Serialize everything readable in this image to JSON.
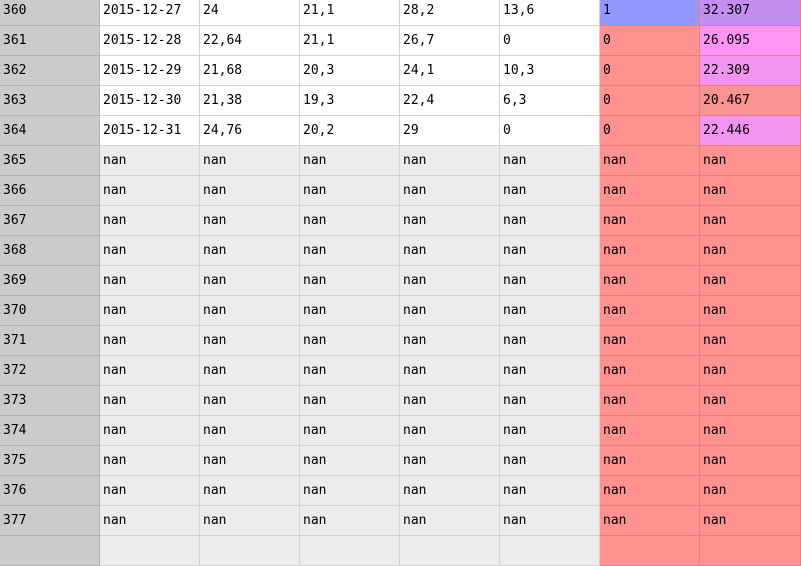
{
  "colors": {
    "index_bg": "#cbcbcb",
    "cell_white": "#ffffff",
    "cell_grey": "#ececec",
    "cell_red": "#ff9191",
    "cell_blue": "#9199ff",
    "cell_purple": "#c38ef2",
    "cell_pink": "#ff93f6",
    "cell_magenta_light": "#f494f2"
  },
  "rows": [
    {
      "index": "360",
      "cells": [
        "2015-12-27",
        "24",
        "21,1",
        "28,2",
        "13,6",
        "1",
        "32.307"
      ],
      "colors": [
        "",
        "",
        "",
        "",
        "",
        "#9199ff",
        "#c38ef2"
      ]
    },
    {
      "index": "361",
      "cells": [
        "2015-12-28",
        "22,64",
        "21,1",
        "26,7",
        "0",
        "0",
        "26.095"
      ],
      "colors": [
        "",
        "",
        "",
        "",
        "",
        "#ff9191",
        "#ff93f6"
      ]
    },
    {
      "index": "362",
      "cells": [
        "2015-12-29",
        "21,68",
        "20,3",
        "24,1",
        "10,3",
        "0",
        "22.309"
      ],
      "colors": [
        "",
        "",
        "",
        "",
        "",
        "#ff9191",
        "#f494f2"
      ]
    },
    {
      "index": "363",
      "cells": [
        "2015-12-30",
        "21,38",
        "19,3",
        "22,4",
        "6,3",
        "0",
        "20.467"
      ],
      "colors": [
        "",
        "",
        "",
        "",
        "",
        "#ff9191",
        "#f79391"
      ]
    },
    {
      "index": "364",
      "cells": [
        "2015-12-31",
        "24,76",
        "20,2",
        "29",
        "0",
        "0",
        "22.446"
      ],
      "colors": [
        "",
        "",
        "",
        "",
        "",
        "#ff9191",
        "#f494f2"
      ]
    },
    {
      "index": "365",
      "cells": [
        "nan",
        "nan",
        "nan",
        "nan",
        "nan",
        "nan",
        "nan"
      ]
    },
    {
      "index": "366",
      "cells": [
        "nan",
        "nan",
        "nan",
        "nan",
        "nan",
        "nan",
        "nan"
      ]
    },
    {
      "index": "367",
      "cells": [
        "nan",
        "nan",
        "nan",
        "nan",
        "nan",
        "nan",
        "nan"
      ]
    },
    {
      "index": "368",
      "cells": [
        "nan",
        "nan",
        "nan",
        "nan",
        "nan",
        "nan",
        "nan"
      ]
    },
    {
      "index": "369",
      "cells": [
        "nan",
        "nan",
        "nan",
        "nan",
        "nan",
        "nan",
        "nan"
      ]
    },
    {
      "index": "370",
      "cells": [
        "nan",
        "nan",
        "nan",
        "nan",
        "nan",
        "nan",
        "nan"
      ]
    },
    {
      "index": "371",
      "cells": [
        "nan",
        "nan",
        "nan",
        "nan",
        "nan",
        "nan",
        "nan"
      ]
    },
    {
      "index": "372",
      "cells": [
        "nan",
        "nan",
        "nan",
        "nan",
        "nan",
        "nan",
        "nan"
      ]
    },
    {
      "index": "373",
      "cells": [
        "nan",
        "nan",
        "nan",
        "nan",
        "nan",
        "nan",
        "nan"
      ]
    },
    {
      "index": "374",
      "cells": [
        "nan",
        "nan",
        "nan",
        "nan",
        "nan",
        "nan",
        "nan"
      ]
    },
    {
      "index": "375",
      "cells": [
        "nan",
        "nan",
        "nan",
        "nan",
        "nan",
        "nan",
        "nan"
      ]
    },
    {
      "index": "376",
      "cells": [
        "nan",
        "nan",
        "nan",
        "nan",
        "nan",
        "nan",
        "nan"
      ]
    },
    {
      "index": "377",
      "cells": [
        "nan",
        "nan",
        "nan",
        "nan",
        "nan",
        "nan",
        "nan"
      ]
    },
    {
      "index": "",
      "cells": [
        "",
        "",
        "",
        "",
        "",
        "",
        ""
      ]
    }
  ]
}
